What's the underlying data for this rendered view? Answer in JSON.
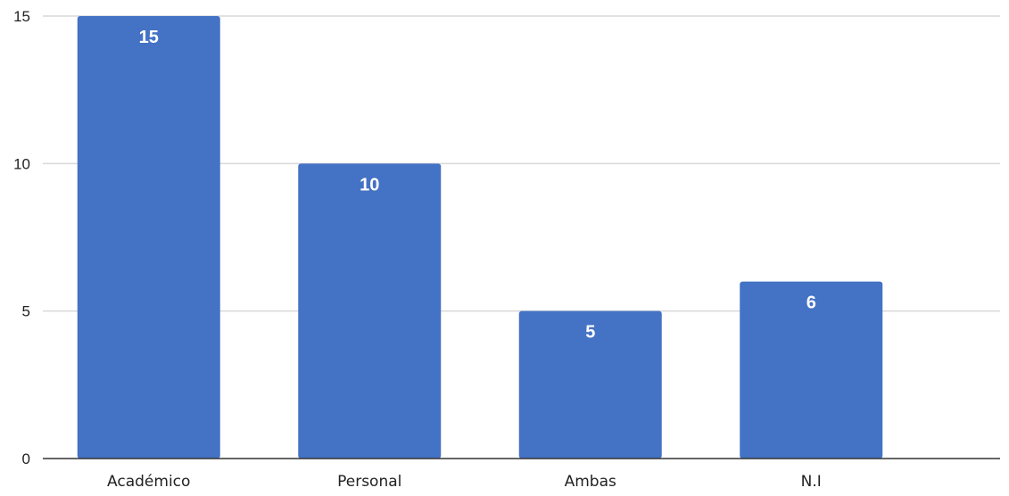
{
  "chart_data": {
    "type": "bar",
    "title": "",
    "xlabel": "",
    "ylabel": "",
    "categories": [
      "Académico",
      "Personal",
      "Ambas",
      "N.I"
    ],
    "values": [
      15,
      10,
      5,
      6
    ],
    "data_labels": [
      "15",
      "10",
      "5",
      "6"
    ],
    "ylim": [
      0,
      15
    ],
    "yticks": [
      0,
      5,
      10,
      15
    ],
    "ytick_labels": [
      "0",
      "5",
      "10",
      "15"
    ],
    "grid": true,
    "legend": "none",
    "colors": {
      "bar": "#4472c4",
      "grid": "#d9d9d9",
      "axis": "#333333",
      "data_label": "#ffffff"
    }
  }
}
